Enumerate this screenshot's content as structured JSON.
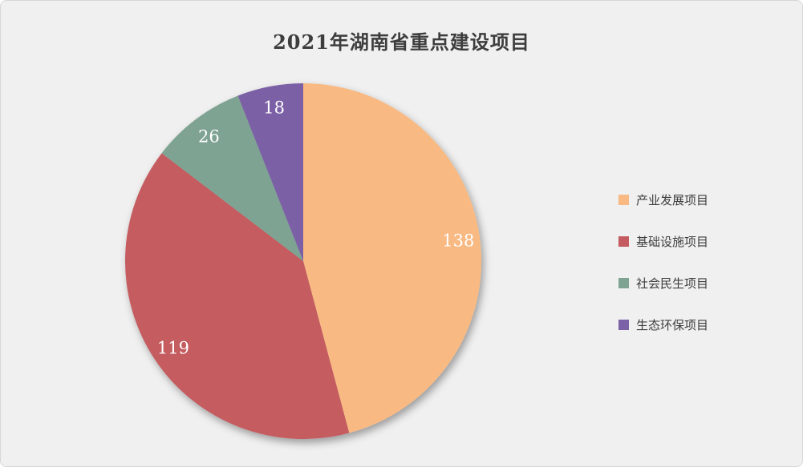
{
  "page": {
    "background_color": "#f0f0f0",
    "border_color": "#d7d7d7"
  },
  "chart_data": {
    "type": "pie",
    "title": "2021年湖南省重点建设项目",
    "categories": [
      "产业发展项目",
      "基础设施项目",
      "社会民生项目",
      "生态环保项目"
    ],
    "values": [
      138,
      119,
      26,
      18
    ],
    "colors": [
      "#f8b982",
      "#c45b60",
      "#7fa392",
      "#7b61a6"
    ],
    "data_label_color": "#ffffff",
    "text_color": "#3d3d3d",
    "legend_position": "right",
    "start_angle_deg": 0,
    "direction": "clockwise"
  }
}
